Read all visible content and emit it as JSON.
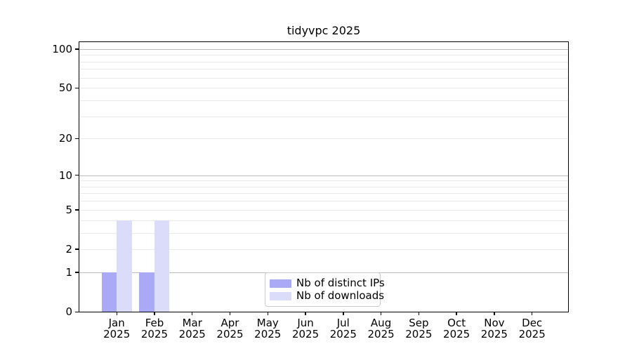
{
  "title": "tidyvpc 2025",
  "colors": {
    "ips_bar": "#a9a9f5",
    "downloads_bar": "#dbdbfa",
    "grid_major": "#bbbbbb",
    "grid_minor": "#e9e9e9",
    "axis_line": "#000000",
    "text": "#000000",
    "legend_border": "#cccccc",
    "background": "#ffffff"
  },
  "legend": {
    "items": [
      {
        "label": "Nb of distinct IPs",
        "swatch": "ips_bar"
      },
      {
        "label": "Nb of downloads",
        "swatch": "downloads_bar"
      }
    ]
  },
  "chart_data": {
    "type": "bar",
    "title": "tidyvpc 2025",
    "categories": [
      "Jan",
      "Feb",
      "Mar",
      "Apr",
      "May",
      "Jun",
      "Jul",
      "Aug",
      "Sep",
      "Oct",
      "Nov",
      "Dec"
    ],
    "x_year_label": "2025",
    "series": [
      {
        "name": "Nb of distinct IPs",
        "color": "ips_bar",
        "values": [
          1,
          1,
          0,
          0,
          0,
          0,
          0,
          0,
          0,
          0,
          0,
          0
        ]
      },
      {
        "name": "Nb of downloads",
        "color": "downloads_bar",
        "values": [
          4,
          4,
          0,
          0,
          0,
          0,
          0,
          0,
          0,
          0,
          0,
          0
        ]
      }
    ],
    "xlabel": "",
    "ylabel": "",
    "yscale": "log1p",
    "ylim": [
      0,
      113
    ],
    "yticks_labeled": [
      0,
      1,
      2,
      5,
      10,
      20,
      50,
      100
    ],
    "ygrid_major": [
      1,
      10,
      100
    ],
    "ygrid_minor": [
      2,
      3,
      4,
      5,
      6,
      7,
      8,
      9,
      20,
      30,
      40,
      50,
      60,
      70,
      80,
      90
    ],
    "grid": true,
    "legend_position": "lower center"
  }
}
